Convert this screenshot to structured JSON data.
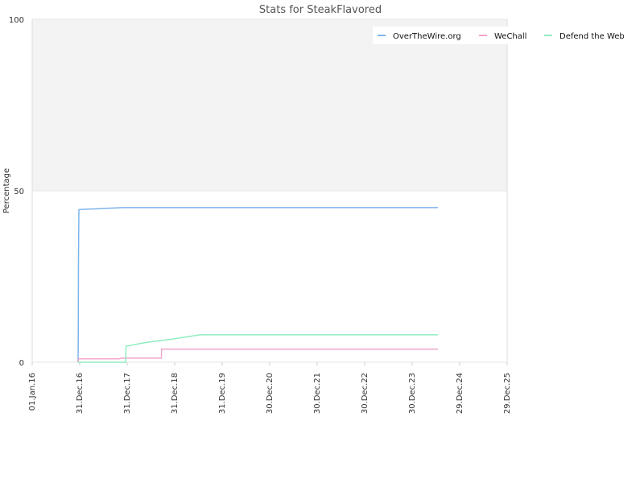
{
  "chart_data": {
    "type": "line",
    "title": "Stats for SteakFlavored",
    "xlabel": "",
    "ylabel": "Percentage",
    "ylim": [
      0,
      100
    ],
    "y_ticks": [
      "0",
      "50",
      "100"
    ],
    "x_ticks": [
      "01.Jan.16",
      "31.Dec.16",
      "31.Dec.17",
      "31.Dec.18",
      "31.Dec.19",
      "30.Dec.20",
      "30.Dec.21",
      "30.Dec.22",
      "30.Dec.23",
      "29.Dec.24",
      "29.Dec.25"
    ],
    "xlim": [
      "2016-01-01",
      "2025-12-29"
    ],
    "grid": true,
    "legend_position": "top-right",
    "series": [
      {
        "name": "OverTheWire.org",
        "color": "#7cb5ec",
        "points": [
          [
            "2016-12-18",
            0
          ],
          [
            "2016-12-20",
            5
          ],
          [
            "2016-12-22",
            30
          ],
          [
            "2016-12-25",
            44.5
          ],
          [
            "2017-02-01",
            44.6
          ],
          [
            "2017-06-01",
            44.8
          ],
          [
            "2017-12-01",
            45.1
          ],
          [
            "2018-12-01",
            45.1
          ],
          [
            "2024-07-15",
            45.1
          ]
        ]
      },
      {
        "name": "WeChall",
        "color": "#f2a6cc",
        "points": [
          [
            "2016-12-18",
            0
          ],
          [
            "2016-12-22",
            1
          ],
          [
            "2017-11-01",
            1
          ],
          [
            "2017-11-15",
            1.2
          ],
          [
            "2018-09-20",
            1.2
          ],
          [
            "2018-09-21",
            3.8
          ],
          [
            "2024-07-15",
            3.8
          ]
        ]
      },
      {
        "name": "Defend the Web",
        "color": "#90ed c1",
        "points": [
          [
            "2016-12-18",
            0
          ],
          [
            "2017-12-20",
            0
          ],
          [
            "2017-12-22",
            4.7
          ],
          [
            "2018-06-01",
            5.8
          ],
          [
            "2018-12-01",
            6.7
          ],
          [
            "2019-07-15",
            8
          ],
          [
            "2024-07-15",
            8
          ]
        ]
      }
    ]
  }
}
